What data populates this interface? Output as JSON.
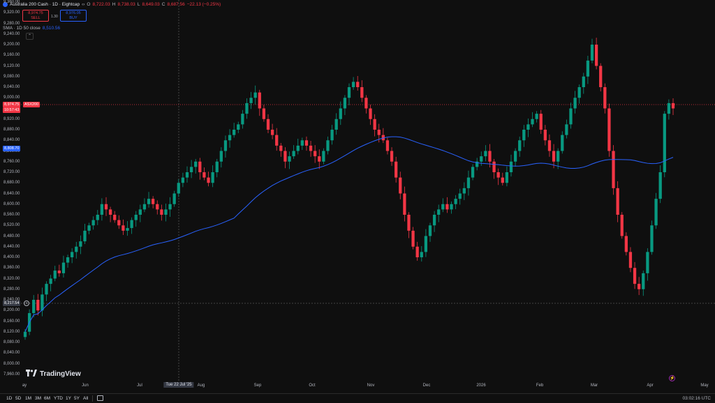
{
  "symbol": {
    "title": "Australia 200 Cash · 1D · Eightcap",
    "ohlc": {
      "o_label": "O",
      "o": "8,722.03",
      "h_label": "H",
      "h": "8,738.03",
      "l_label": "L",
      "l": "8,649.03",
      "c_label": "C",
      "c": "8,687.56",
      "change": "−22.13 (−0.25%)"
    }
  },
  "trade": {
    "sell_price": "8,974.75",
    "sell_label": "SELL",
    "spread": "1.30",
    "buy_price": "8,976.05",
    "buy_label": "BUY"
  },
  "indicator": {
    "name": "SMA · 1D 50 close",
    "value": "8,510.56"
  },
  "price_tags": {
    "current_price": "8,974.75",
    "countdown": "10:57:43",
    "ticker": "ASX200",
    "sma_price": "8,808.70",
    "crosshair_price": "8,217.54"
  },
  "y_axis": {
    "min": 7960,
    "max": 9360,
    "step": 40,
    "labels": [
      "9,360.00",
      "9,320.00",
      "9,280.00",
      "9,240.00",
      "9,200.00",
      "9,160.00",
      "9,120.00",
      "9,080.00",
      "9,040.00",
      "9,000.00",
      "8,960.00",
      "8,920.00",
      "8,880.00",
      "8,840.00",
      "8,800.00",
      "8,760.00",
      "8,720.00",
      "8,680.00",
      "8,640.00",
      "8,600.00",
      "8,560.00",
      "8,520.00",
      "8,480.00",
      "8,440.00",
      "8,400.00",
      "8,360.00",
      "8,320.00",
      "8,280.00",
      "8,240.00",
      "8,200.00",
      "8,160.00",
      "8,120.00",
      "8,080.00",
      "8,040.00",
      "8,000.00",
      "7,960.00"
    ]
  },
  "x_axis": {
    "labels": [
      "ay",
      "Jun",
      "Jul",
      "Tue 22 Jul '25",
      "Aug",
      "Sep",
      "Oct",
      "Nov",
      "Dec",
      "2026",
      "Feb",
      "Mar",
      "Apr",
      "May"
    ]
  },
  "brand": "TradingView",
  "bottom_toolbar": {
    "ranges": [
      "1D",
      "5D",
      "1M",
      "3M",
      "6M",
      "YTD",
      "1Y",
      "5Y",
      "All"
    ],
    "time": "03:02:16 UTC"
  },
  "colors": {
    "up": "#089981",
    "down": "#f23645",
    "sma": "#2962ff",
    "background": "#0f0f0f"
  },
  "chart_data": {
    "type": "candlestick",
    "ylim": [
      7960,
      9360
    ],
    "daily_closes_approx": [
      8120,
      8190,
      8240,
      8200,
      8260,
      8300,
      8320,
      8350,
      8340,
      8380,
      8400,
      8420,
      8440,
      8460,
      8500,
      8520,
      8540,
      8560,
      8600,
      8580,
      8560,
      8540,
      8520,
      8500,
      8510,
      8540,
      8560,
      8580,
      8600,
      8620,
      8600,
      8580,
      8560,
      8580,
      8600,
      8640,
      8680,
      8700,
      8720,
      8740,
      8760,
      8720,
      8700,
      8680,
      8720,
      8760,
      8800,
      8840,
      8860,
      8880,
      8900,
      8940,
      8980,
      9000,
      9020,
      8960,
      8920,
      8880,
      8860,
      8820,
      8800,
      8760,
      8780,
      8800,
      8820,
      8840,
      8820,
      8800,
      8780,
      8760,
      8800,
      8840,
      8880,
      8920,
      8960,
      9000,
      9040,
      9060,
      9040,
      9000,
      8960,
      8920,
      8880,
      8860,
      8840,
      8800,
      8760,
      8700,
      8640,
      8560,
      8500,
      8440,
      8400,
      8420,
      8480,
      8520,
      8560,
      8580,
      8600,
      8580,
      8600,
      8620,
      8640,
      8660,
      8700,
      8740,
      8760,
      8780,
      8800,
      8760,
      8720,
      8700,
      8680,
      8720,
      8760,
      8800,
      8840,
      8880,
      8900,
      8920,
      8940,
      8880,
      8840,
      8800,
      8760,
      8800,
      8860,
      8900,
      8960,
      9000,
      9040,
      9080,
      9140,
      9200,
      9120,
      9040,
      8960,
      8800,
      8660,
      8560,
      8480,
      8420,
      8360,
      8300,
      8280,
      8340,
      8420,
      8520,
      8620,
      8720,
      8940,
      8980,
      8960
    ]
  }
}
